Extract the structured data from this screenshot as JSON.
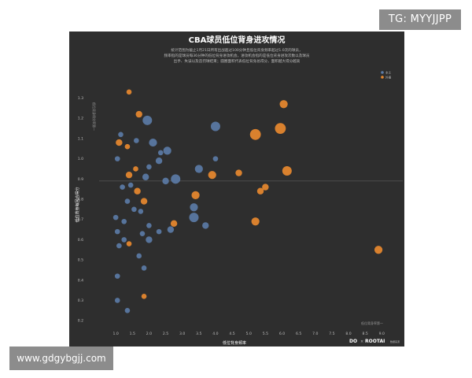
{
  "watermarks": {
    "top_right": "TG: MYYJJPP",
    "bottom_left": "www.gdgybgjj.com"
  },
  "footer": {
    "quadrant_label": "低位背身率第一",
    "brand_left": "DO",
    "brand_sep": "×",
    "brand_right": "ROOTAI",
    "brand_sub": "数据来源"
  },
  "colors": {
    "background": "#2e2e2e",
    "series_blue": "#5b7ba6",
    "series_orange": "#e8892f",
    "text": "#ffffff",
    "muted": "#bdbdbd",
    "ref_line": "#6a6a6a"
  },
  "chart_data": {
    "type": "scatter",
    "title": "CBA球员低位背身进攻情况",
    "subtitle_lines": [
      "统计范围为截止1月21日所有出战超过100分钟且低位背身频率超过1.0次的球员，",
      "频率指的是球员每36分钟的低位背身进攻机会，进攻机会指的是低位背身进攻次数以及球员",
      "出手、失误以及造罚球结束；圆圈面积代表低位背身总得分，面积越大得分越高"
    ],
    "xlabel": "低位背身频率",
    "ylabel": "低位背身每回合得分",
    "quadrant_ylabel": "低位背身得分率第一",
    "xlim": [
      0.5,
      9.3
    ],
    "ylim": [
      0.15,
      1.38
    ],
    "xticks": [
      "1.0",
      "1.5",
      "2.0",
      "2.5",
      "3.0",
      "3.5",
      "4.0",
      "4.5",
      "5.0",
      "5.5",
      "6.0",
      "6.5",
      "7.0",
      "7.5",
      "8.0",
      "8.5",
      "9.0"
    ],
    "yticks": [
      "0.2",
      "0.3",
      "0.4",
      "0.5",
      "0.6",
      "0.7",
      "0.8",
      "0.9",
      "1.0",
      "1.1",
      "1.2",
      "1.3"
    ],
    "ref_y": 0.89,
    "legend": {
      "placement": "top-right",
      "entries": [
        "本土",
        "外援"
      ]
    },
    "series": [
      {
        "name": "本土",
        "points": [
          {
            "x": 1.15,
            "y": 1.12,
            "s": 3
          },
          {
            "x": 1.62,
            "y": 1.09,
            "s": 3
          },
          {
            "x": 1.95,
            "y": 1.19,
            "s": 6
          },
          {
            "x": 2.12,
            "y": 1.08,
            "s": 5
          },
          {
            "x": 2.35,
            "y": 1.03,
            "s": 3
          },
          {
            "x": 2.55,
            "y": 1.04,
            "s": 5
          },
          {
            "x": 2.3,
            "y": 0.99,
            "s": 4
          },
          {
            "x": 2.0,
            "y": 0.96,
            "s": 3
          },
          {
            "x": 1.05,
            "y": 1.0,
            "s": 3
          },
          {
            "x": 1.9,
            "y": 0.91,
            "s": 4
          },
          {
            "x": 2.5,
            "y": 0.89,
            "s": 4
          },
          {
            "x": 2.8,
            "y": 0.9,
            "s": 6
          },
          {
            "x": 3.5,
            "y": 0.95,
            "s": 5
          },
          {
            "x": 4.0,
            "y": 1.16,
            "s": 6
          },
          {
            "x": 4.0,
            "y": 1.0,
            "s": 3
          },
          {
            "x": 1.45,
            "y": 0.87,
            "s": 3
          },
          {
            "x": 1.2,
            "y": 0.86,
            "s": 3
          },
          {
            "x": 1.35,
            "y": 0.79,
            "s": 3
          },
          {
            "x": 1.0,
            "y": 0.71,
            "s": 3
          },
          {
            "x": 1.25,
            "y": 0.69,
            "s": 3
          },
          {
            "x": 1.55,
            "y": 0.75,
            "s": 3
          },
          {
            "x": 1.75,
            "y": 0.74,
            "s": 3
          },
          {
            "x": 1.8,
            "y": 0.63,
            "s": 3
          },
          {
            "x": 2.0,
            "y": 0.6,
            "s": 4
          },
          {
            "x": 2.3,
            "y": 0.64,
            "s": 3
          },
          {
            "x": 2.65,
            "y": 0.65,
            "s": 4
          },
          {
            "x": 3.35,
            "y": 0.71,
            "s": 6
          },
          {
            "x": 3.35,
            "y": 0.76,
            "s": 5
          },
          {
            "x": 3.7,
            "y": 0.67,
            "s": 4
          },
          {
            "x": 2.0,
            "y": 0.67,
            "s": 3
          },
          {
            "x": 1.05,
            "y": 0.64,
            "s": 3
          },
          {
            "x": 1.25,
            "y": 0.6,
            "s": 3
          },
          {
            "x": 1.1,
            "y": 0.57,
            "s": 3
          },
          {
            "x": 1.7,
            "y": 0.52,
            "s": 3
          },
          {
            "x": 1.85,
            "y": 0.46,
            "s": 3
          },
          {
            "x": 1.05,
            "y": 0.42,
            "s": 3
          },
          {
            "x": 1.05,
            "y": 0.3,
            "s": 3
          },
          {
            "x": 1.35,
            "y": 0.25,
            "s": 3
          }
        ]
      },
      {
        "name": "外援",
        "points": [
          {
            "x": 1.4,
            "y": 1.33,
            "s": 3
          },
          {
            "x": 1.7,
            "y": 1.22,
            "s": 4
          },
          {
            "x": 1.1,
            "y": 1.08,
            "s": 4
          },
          {
            "x": 1.35,
            "y": 1.06,
            "s": 3
          },
          {
            "x": 1.6,
            "y": 0.95,
            "s": 3
          },
          {
            "x": 1.4,
            "y": 0.92,
            "s": 4
          },
          {
            "x": 1.65,
            "y": 0.84,
            "s": 4
          },
          {
            "x": 1.85,
            "y": 0.79,
            "s": 4
          },
          {
            "x": 3.4,
            "y": 0.82,
            "s": 5
          },
          {
            "x": 3.9,
            "y": 0.92,
            "s": 5
          },
          {
            "x": 4.7,
            "y": 0.93,
            "s": 4
          },
          {
            "x": 5.2,
            "y": 1.12,
            "s": 7
          },
          {
            "x": 5.95,
            "y": 1.15,
            "s": 7
          },
          {
            "x": 6.05,
            "y": 1.27,
            "s": 5
          },
          {
            "x": 6.15,
            "y": 0.94,
            "s": 6
          },
          {
            "x": 5.5,
            "y": 0.86,
            "s": 4
          },
          {
            "x": 5.35,
            "y": 0.84,
            "s": 4
          },
          {
            "x": 5.2,
            "y": 0.69,
            "s": 5
          },
          {
            "x": 8.9,
            "y": 0.55,
            "s": 5
          },
          {
            "x": 2.75,
            "y": 0.68,
            "s": 4
          },
          {
            "x": 1.85,
            "y": 0.32,
            "s": 3
          },
          {
            "x": 1.4,
            "y": 0.58,
            "s": 3
          }
        ]
      }
    ]
  }
}
